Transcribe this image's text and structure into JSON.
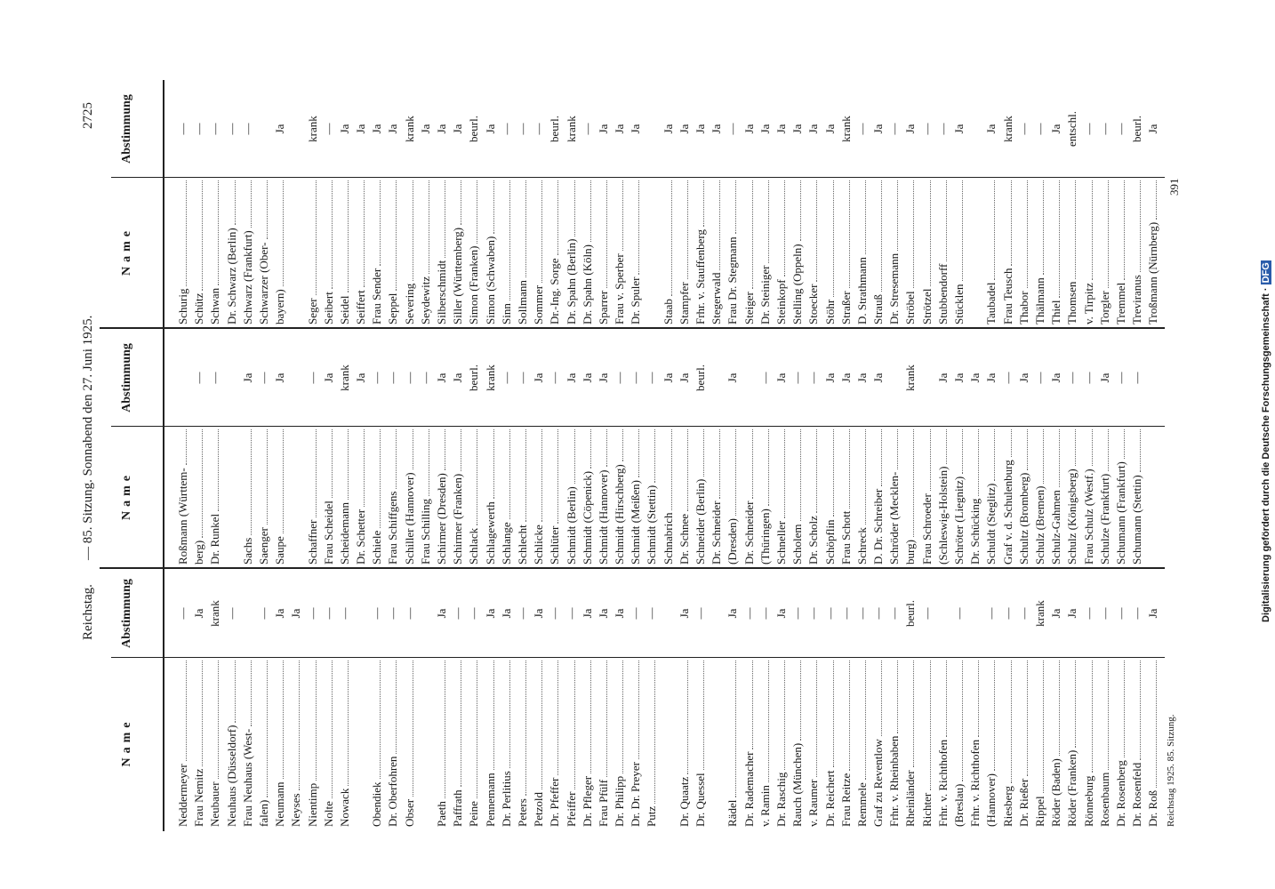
{
  "header": {
    "left": "Reichstag.",
    "center": "— 85. Sitzung. Sonnabend den 27. Juni 1925.",
    "page": "2725"
  },
  "table_header": {
    "name": "Name",
    "vote": "Abstimmung"
  },
  "columns": [
    {
      "groups": [
        {
          "rows": [
            {
              "name": "Neddermeyer",
              "vote": "—"
            },
            {
              "name": "Frau Nemitz",
              "vote": "Ja"
            },
            {
              "name": "Neubauer",
              "vote": "krank"
            },
            {
              "name": "Neuhaus (Düsseldorf)",
              "vote": "—"
            },
            {
              "name": "Frau Neuhaus (West-"
            },
            {
              "name": "falen)",
              "vote": "—"
            },
            {
              "name": "Neumann",
              "vote": "Ja"
            },
            {
              "name": "Neyses",
              "vote": "Ja"
            },
            {
              "name": "Nientimp",
              "vote": "—"
            },
            {
              "name": "Nolte",
              "vote": "—"
            },
            {
              "name": "Nowack",
              "vote": "—"
            }
          ]
        },
        {
          "rows": [
            {
              "name": "Obendiek",
              "vote": "—"
            },
            {
              "name": "Dr. Oberfohren",
              "vote": "—"
            },
            {
              "name": "Obser",
              "vote": "—"
            }
          ]
        },
        {
          "rows": [
            {
              "name": "Paeth",
              "vote": "Ja"
            },
            {
              "name": "Paffrath",
              "vote": "—"
            },
            {
              "name": "Peine",
              "vote": "—"
            },
            {
              "name": "Pennemann",
              "vote": "Ja"
            },
            {
              "name": "Dr. Perlitius",
              "vote": "Ja"
            },
            {
              "name": "Peters",
              "vote": "—"
            },
            {
              "name": "Petzold",
              "vote": "Ja"
            },
            {
              "name": "Dr. Pfeffer",
              "vote": "—"
            },
            {
              "name": "Pfeiffer",
              "vote": "—"
            },
            {
              "name": "Dr. Pfleger",
              "vote": "Ja"
            },
            {
              "name": "Frau Pfülf",
              "vote": "Ja"
            },
            {
              "name": "Dr. Philipp",
              "vote": "Ja"
            },
            {
              "name": "Dr. Dr. Preyer",
              "vote": "—"
            },
            {
              "name": "Putz",
              "vote": "—"
            }
          ]
        },
        {
          "rows": [
            {
              "name": "Dr. Quaatz",
              "vote": "Ja"
            },
            {
              "name": "Dr. Quessel",
              "vote": "—"
            }
          ]
        },
        {
          "rows": [
            {
              "name": "Rädel",
              "vote": "Ja"
            },
            {
              "name": "Dr. Rademacher",
              "vote": "—"
            },
            {
              "name": "v. Ramin",
              "vote": "—"
            },
            {
              "name": "Dr. Raschig",
              "vote": "Ja"
            },
            {
              "name": "Rauch (München)",
              "vote": "—"
            },
            {
              "name": "v. Raumer",
              "vote": "—"
            },
            {
              "name": "Dr. Reichert",
              "vote": "—"
            },
            {
              "name": "Frau Reitze",
              "vote": "—"
            },
            {
              "name": "Remmele",
              "vote": "—"
            },
            {
              "name": "Graf zu Reventlow",
              "vote": "—"
            },
            {
              "name": "Frhr. v. Rheinbaben",
              "vote": "—"
            },
            {
              "name": "Rheinländer",
              "vote": "beurl."
            },
            {
              "name": "Richter",
              "vote": "—"
            },
            {
              "name": "Frhr. v. Richthofen"
            },
            {
              "name": "(Breslau)",
              "vote": "—"
            },
            {
              "name": "Frhr. v. Richthofen"
            },
            {
              "name": "(Hannover)",
              "vote": "—"
            },
            {
              "name": "Riesberg",
              "vote": "—"
            },
            {
              "name": "Dr. Rießer",
              "vote": "—"
            },
            {
              "name": "Rippel",
              "vote": "krank"
            },
            {
              "name": "Röder (Baden)",
              "vote": "Ja"
            },
            {
              "name": "Röder (Franken)",
              "vote": "Ja"
            },
            {
              "name": "Rönneburg",
              "vote": "—"
            },
            {
              "name": "Rosenbaum",
              "vote": "—"
            },
            {
              "name": "Dr. Rosenberg",
              "vote": "—"
            },
            {
              "name": "Dr. Rosenfeld",
              "vote": "—"
            },
            {
              "name": "Dr. Roß",
              "vote": "Ja"
            }
          ]
        }
      ]
    },
    {
      "groups": [
        {
          "rows": [
            {
              "name": "Roßmann (Württem-"
            },
            {
              "name": "berg)",
              "vote": "—"
            },
            {
              "name": "Dr. Runkel",
              "vote": "—"
            }
          ]
        },
        {
          "rows": [
            {
              "name": "Sachs",
              "vote": "Ja"
            },
            {
              "name": "Saenger",
              "vote": "—"
            },
            {
              "name": "Saupe",
              "vote": "Ja"
            }
          ]
        },
        {
          "rows": [
            {
              "name": "Schaffner",
              "vote": "—"
            },
            {
              "name": "Frau Scheidel",
              "vote": "Ja"
            },
            {
              "name": "Scheidemann",
              "vote": "krank"
            },
            {
              "name": "Dr. Schetter",
              "vote": "Ja"
            },
            {
              "name": "Schiele",
              "vote": "—"
            },
            {
              "name": "Frau Schiffgens",
              "vote": "—"
            },
            {
              "name": "Schiller (Hannover)",
              "vote": "—"
            },
            {
              "name": "Frau Schilling",
              "vote": "—"
            },
            {
              "name": "Schirmer (Dresden)",
              "vote": "Ja"
            },
            {
              "name": "Schirmer (Franken)",
              "vote": "Ja"
            },
            {
              "name": "Schlack",
              "vote": "beurl."
            },
            {
              "name": "Schlagewerth",
              "vote": "krank"
            },
            {
              "name": "Schlange",
              "vote": "—"
            },
            {
              "name": "Schlecht",
              "vote": "—"
            },
            {
              "name": "Schlicke",
              "vote": "Ja"
            },
            {
              "name": "Schlüter",
              "vote": "—"
            },
            {
              "name": "Schmidt (Berlin)",
              "vote": "Ja"
            },
            {
              "name": "Schmidt (Cöpenick)",
              "vote": "Ja"
            },
            {
              "name": "Schmidt (Hannover)",
              "vote": "Ja"
            },
            {
              "name": "Schmidt (Hirschberg)",
              "vote": "—"
            },
            {
              "name": "Schmidt (Meißen)",
              "vote": "—"
            },
            {
              "name": "Schmidt (Stettin)",
              "vote": "—"
            },
            {
              "name": "Schnabrich",
              "vote": "Ja"
            },
            {
              "name": "Dr. Schnee",
              "vote": "Ja"
            },
            {
              "name": "Schneider (Berlin)",
              "vote": "beurl."
            },
            {
              "name": "Dr. Schneider"
            },
            {
              "name": "(Dresden)",
              "vote": "Ja"
            },
            {
              "name": "Dr. Schneider"
            },
            {
              "name": "(Thüringen)",
              "vote": "—"
            },
            {
              "name": "Schneller",
              "vote": "Ja"
            },
            {
              "name": "Scholem",
              "vote": "—"
            },
            {
              "name": "Dr. Scholz",
              "vote": "—"
            },
            {
              "name": "Schöpflin",
              "vote": "Ja"
            },
            {
              "name": "Frau Schott",
              "vote": "Ja"
            },
            {
              "name": "Schreck",
              "vote": "Ja"
            },
            {
              "name": "D. Dr. Schreiber",
              "vote": "Ja"
            },
            {
              "name": "Schröder (Mecklen-"
            },
            {
              "name": "burg)",
              "vote": "krank"
            },
            {
              "name": "Frau Schroeder"
            },
            {
              "name": "(Schleswig-Holstein)",
              "vote": "Ja"
            },
            {
              "name": "Schröter (Liegnitz)",
              "vote": "Ja"
            },
            {
              "name": "Dr. Schücking",
              "vote": "Ja"
            },
            {
              "name": "Schuldt (Steglitz)",
              "vote": "Ja"
            },
            {
              "name": "Graf v. d. Schulenburg",
              "vote": "—"
            },
            {
              "name": "Schultz (Bromberg)",
              "vote": "Ja"
            },
            {
              "name": "Schulz (Bremen)",
              "vote": "—"
            },
            {
              "name": "Schulz-Gahmen",
              "vote": "Ja"
            },
            {
              "name": "Schulz (Königsberg)",
              "vote": "—"
            },
            {
              "name": "Frau Schulz (Westf.)",
              "vote": "—"
            },
            {
              "name": "Schulze (Frankfurt)",
              "vote": "Ja"
            },
            {
              "name": "Schumann (Frankfurt)",
              "vote": "—"
            },
            {
              "name": "Schumann (Stettin)",
              "vote": "—"
            }
          ]
        }
      ]
    },
    {
      "groups": [
        {
          "rows": [
            {
              "name": "Schurig",
              "vote": "—"
            },
            {
              "name": "Schütz",
              "vote": "—"
            },
            {
              "name": "Schwan",
              "vote": "—"
            },
            {
              "name": "Dr. Schwarz (Berlin)",
              "vote": "—"
            },
            {
              "name": "Schwarz (Frankfurt)",
              "vote": "—"
            },
            {
              "name": "Schwarzer (Ober-"
            },
            {
              "name": "bayern)",
              "vote": "Ja"
            }
          ]
        },
        {
          "rows": [
            {
              "name": "Seger",
              "vote": "krank"
            },
            {
              "name": "Seibert",
              "vote": "—"
            },
            {
              "name": "Seidel",
              "vote": "Ja"
            },
            {
              "name": "Seiffert",
              "vote": "Ja"
            },
            {
              "name": "Frau Sender",
              "vote": "Ja"
            },
            {
              "name": "Seppel",
              "vote": "Ja"
            },
            {
              "name": "Severing",
              "vote": "krank"
            },
            {
              "name": "Seydewitz",
              "vote": "Ja"
            },
            {
              "name": "Silberschmidt",
              "vote": "Ja"
            },
            {
              "name": "Siller (Württemberg)",
              "vote": "Ja"
            },
            {
              "name": "Simon (Franken)",
              "vote": "beurl."
            },
            {
              "name": "Simon (Schwaben)",
              "vote": "Ja"
            },
            {
              "name": "Sinn",
              "vote": "—"
            },
            {
              "name": "Sollmann",
              "vote": "—"
            },
            {
              "name": "Sommer",
              "vote": "—"
            },
            {
              "name": "Dr.-Ing. Sorge",
              "vote": "beurl."
            },
            {
              "name": "Dr. Spahn (Berlin)",
              "vote": "krank"
            },
            {
              "name": "Dr. Spahn (Köln)",
              "vote": "—"
            },
            {
              "name": "Sparrer",
              "vote": "Ja"
            },
            {
              "name": "Frau v. Sperber",
              "vote": "Ja"
            },
            {
              "name": "Dr. Spuler",
              "vote": "Ja"
            }
          ]
        },
        {
          "rows": [
            {
              "name": "Staab",
              "vote": "Ja"
            },
            {
              "name": "Stampfer",
              "vote": "Ja"
            },
            {
              "name": "Frhr. v. Stauffenberg",
              "vote": "Ja"
            },
            {
              "name": "Stegerwald",
              "vote": "Ja"
            },
            {
              "name": "Frau Dr. Stegmann",
              "vote": "—"
            },
            {
              "name": "Steiger",
              "vote": "Ja"
            },
            {
              "name": "Dr. Steiniger",
              "vote": "Ja"
            },
            {
              "name": "Steinkopf",
              "vote": "Ja"
            },
            {
              "name": "Stelling (Oppeln)",
              "vote": "Ja"
            },
            {
              "name": "Stoecker",
              "vote": "Ja"
            },
            {
              "name": "Stöhr",
              "vote": "Ja"
            },
            {
              "name": "Straßer",
              "vote": "krank"
            },
            {
              "name": "D. Strathmann",
              "vote": "—"
            },
            {
              "name": "Strauß",
              "vote": "Ja"
            },
            {
              "name": "Dr. Stresemann",
              "vote": "—"
            },
            {
              "name": "Ströbel",
              "vote": "Ja"
            },
            {
              "name": "Strötzel",
              "vote": "—"
            },
            {
              "name": "Stubbendorff",
              "vote": "—"
            },
            {
              "name": "Stücklen",
              "vote": "Ja"
            }
          ]
        },
        {
          "rows": [
            {
              "name": "Taubadel",
              "vote": "Ja"
            },
            {
              "name": "Frau Teusch",
              "vote": "krank"
            },
            {
              "name": "Thabor",
              "vote": "—"
            },
            {
              "name": "Thälmann",
              "vote": "—"
            },
            {
              "name": "Thiel",
              "vote": "Ja"
            },
            {
              "name": "Thomsen",
              "vote": "entschl."
            },
            {
              "name": "v. Tirpitz",
              "vote": "—"
            },
            {
              "name": "Torgler",
              "vote": "—"
            },
            {
              "name": "Tremmel",
              "vote": "—"
            },
            {
              "name": "Treviranus",
              "vote": "beurl."
            },
            {
              "name": "Troßmann (Nürnberg)",
              "vote": "Ja"
            }
          ]
        }
      ]
    }
  ],
  "footer": {
    "left": "Reichstag 1925. 85. Sitzung.",
    "signature": "391"
  },
  "sidebar": {
    "text": "Digitalisierung gefördert durch die Deutsche Forschungsgemeinschaft ·",
    "logo": "DFG"
  }
}
